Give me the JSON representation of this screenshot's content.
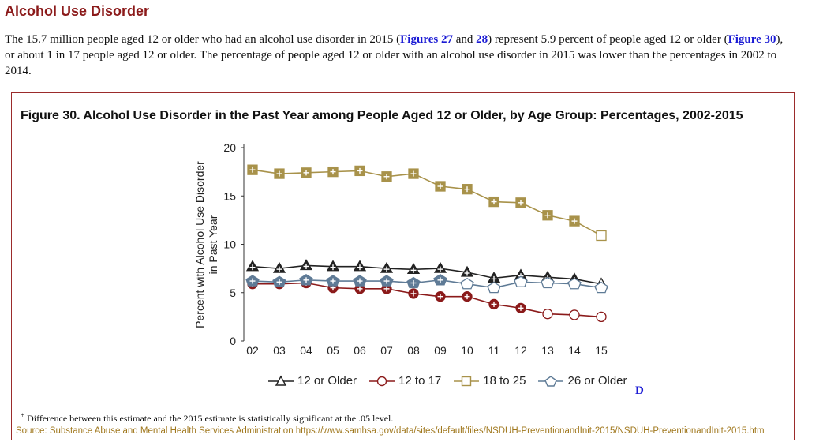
{
  "section_title": "Alcohol Use Disorder",
  "intro": {
    "part1": "The 15.7 million people aged 12 or older who had an alcohol use disorder in 2015 (",
    "link_figures": "Figures 27",
    "and": " and ",
    "link_28": "28",
    "part2": ") represent 5.9 percent of people aged 12 or older (",
    "link_figure30": "Figure 30",
    "part3": "), or about 1 in 17 people aged 12 or older. The percentage of people aged 12 or older with an alcohol use disorder in 2015 was lower than the percentages in 2002 to 2014."
  },
  "figure_title": "Figure 30. Alcohol Use Disorder in the Past Year among People Aged 12 or Older, by Age Group: Percentages, 2002-2015",
  "d_link": "D",
  "footnote_mark": "+",
  "footnote": " Difference between this estimate and the 2015 estimate is statistically significant at the .05 level.",
  "source": "Source: Substance Abuse and Mental Health Services Administration https://www.samhsa.gov/data/sites/default/files/NSDUH-PreventionandInit-2015/NSDUH-PreventionandInit-2015.htm",
  "colors": {
    "title_red": "#8b1a1a",
    "link_blue": "#1a1ad4",
    "source_gold": "#a0781e"
  },
  "chart_data": {
    "type": "line",
    "title": "Figure 30. Alcohol Use Disorder in the Past Year among People Aged 12 or Older, by Age Group: Percentages, 2002-2015",
    "xlabel": "",
    "ylabel": "Percent with Alcohol Use Disorder in Past Year",
    "ylim": [
      0,
      20
    ],
    "yticks": [
      0,
      5,
      10,
      15,
      20
    ],
    "categories": [
      "02",
      "03",
      "04",
      "05",
      "06",
      "07",
      "08",
      "09",
      "10",
      "11",
      "12",
      "13",
      "14",
      "15"
    ],
    "series": [
      {
        "name": "12 or Older",
        "marker": "triangle",
        "color": "#222222",
        "values": [
          7.7,
          7.5,
          7.8,
          7.7,
          7.7,
          7.5,
          7.4,
          7.5,
          7.1,
          6.5,
          6.8,
          6.6,
          6.4,
          5.9
        ],
        "significant": [
          true,
          true,
          true,
          true,
          true,
          true,
          true,
          true,
          true,
          true,
          true,
          true,
          true,
          false
        ]
      },
      {
        "name": "12 to 17",
        "marker": "circle",
        "color": "#8b1a1a",
        "values": [
          5.9,
          5.9,
          6.0,
          5.5,
          5.4,
          5.4,
          4.9,
          4.6,
          4.6,
          3.8,
          3.4,
          2.8,
          2.7,
          2.5
        ],
        "significant": [
          true,
          true,
          true,
          true,
          true,
          true,
          true,
          true,
          true,
          true,
          true,
          false,
          false,
          false
        ]
      },
      {
        "name": "18 to 25",
        "marker": "square",
        "color": "#a8924a",
        "values": [
          17.7,
          17.3,
          17.4,
          17.5,
          17.6,
          17.0,
          17.3,
          16.0,
          15.7,
          14.4,
          14.3,
          13.0,
          12.4,
          10.9
        ],
        "significant": [
          true,
          true,
          true,
          true,
          true,
          true,
          true,
          true,
          true,
          true,
          true,
          true,
          true,
          false
        ]
      },
      {
        "name": "26 or Older",
        "marker": "diamond",
        "color": "#5f7b96",
        "values": [
          6.2,
          6.1,
          6.3,
          6.2,
          6.2,
          6.2,
          6.0,
          6.3,
          5.9,
          5.5,
          6.1,
          6.0,
          5.9,
          5.5
        ],
        "significant": [
          true,
          true,
          true,
          true,
          true,
          true,
          true,
          true,
          false,
          false,
          false,
          false,
          false,
          false
        ]
      }
    ]
  }
}
